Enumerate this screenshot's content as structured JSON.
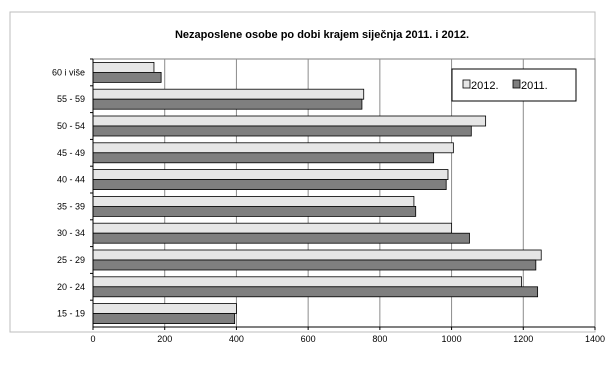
{
  "chart_data": {
    "type": "bar",
    "orientation": "horizontal",
    "title": "Nezaposlene osobe po dobi krajem siječnja 2011. i 2012.",
    "xlabel": "",
    "ylabel": "",
    "xlim": [
      0,
      1400
    ],
    "x_ticks": [
      0,
      200,
      400,
      600,
      800,
      1000,
      1200,
      1400
    ],
    "grid": true,
    "legend_position": "top-right",
    "categories": [
      "60 i više",
      "55 - 59",
      "50 - 54",
      "45 - 49",
      "40 - 44",
      "35 - 39",
      "30 - 34",
      "25 - 29",
      "20 - 24",
      "15 - 19"
    ],
    "series": [
      {
        "name": "2012.",
        "color": "#e6e6e6",
        "values": [
          170,
          755,
          1095,
          1005,
          990,
          895,
          1000,
          1250,
          1195,
          400
        ]
      },
      {
        "name": "2011.",
        "color": "#7f7f7f",
        "values": [
          190,
          750,
          1055,
          950,
          985,
          900,
          1050,
          1235,
          1240,
          395
        ]
      }
    ]
  }
}
